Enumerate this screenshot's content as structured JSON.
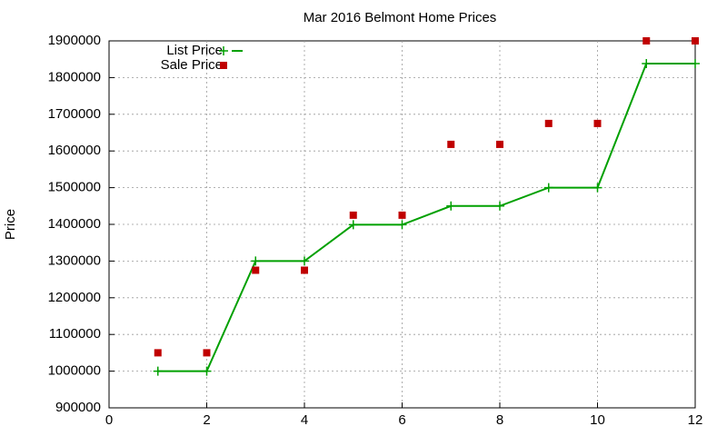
{
  "chart_data": {
    "type": "line",
    "title": "Mar 2016 Belmont Home Prices",
    "y_label": "Price",
    "xlim": [
      0,
      12
    ],
    "xticks": [
      0,
      2,
      4,
      6,
      8,
      10,
      12
    ],
    "ylim": [
      900000,
      1900000
    ],
    "yticks": [
      900000,
      1000000,
      1100000,
      1200000,
      1300000,
      1400000,
      1500000,
      1600000,
      1700000,
      1800000,
      1900000
    ],
    "grid": true,
    "legend": "top-left",
    "series": [
      {
        "name": "List Price",
        "color": "#00a000",
        "style": "linespoints",
        "x": [
          1,
          2,
          3,
          4,
          5,
          6,
          7,
          8,
          9,
          10,
          11,
          12
        ],
        "values": [
          1000000,
          1000000,
          1300000,
          1300000,
          1399000,
          1399000,
          1450000,
          1450000,
          1500000,
          1500000,
          1838000,
          1838000
        ]
      },
      {
        "name": "Sale Price",
        "color": "#c00000",
        "style": "points",
        "x": [
          1,
          2,
          3,
          4,
          5,
          6,
          7,
          8,
          9,
          10,
          11,
          12
        ],
        "values": [
          1050000,
          1050000,
          1275000,
          1275000,
          1425000,
          1425000,
          1618000,
          1618000,
          1675000,
          1675000,
          1900000,
          1900000
        ]
      }
    ]
  }
}
